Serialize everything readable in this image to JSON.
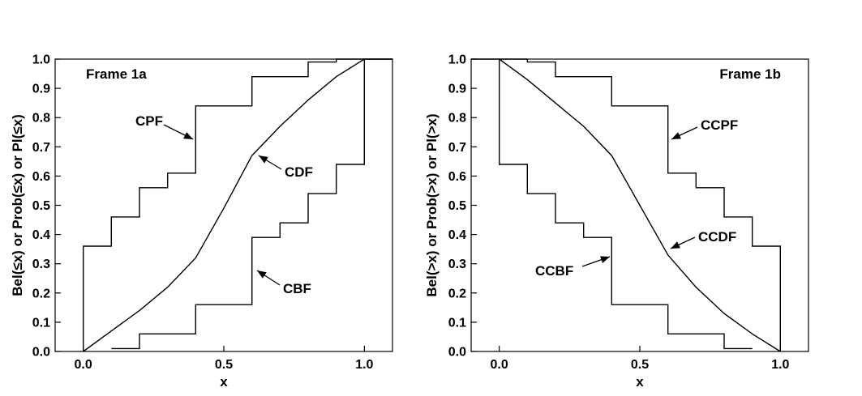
{
  "chart_data": [
    {
      "type": "line",
      "title": "",
      "xlabel": "x",
      "ylabel": "Bel(≤x)  or  Prob(≤x)  or  Pl(≤x)",
      "xlim": [
        -0.1,
        1.1
      ],
      "ylim": [
        0.0,
        1.0
      ],
      "xticks": [
        "0.0",
        "0.5",
        "1.0"
      ],
      "yticks": [
        "0.0",
        "0.1",
        "0.2",
        "0.3",
        "0.4",
        "0.5",
        "0.6",
        "0.7",
        "0.8",
        "0.9",
        "1.0"
      ],
      "grid": false,
      "frame_label": "Frame 1a",
      "series": [
        {
          "name": "CPF",
          "step": true,
          "x": [
            0.0,
            0.0,
            0.1,
            0.1,
            0.2,
            0.2,
            0.3,
            0.3,
            0.4,
            0.4,
            0.6,
            0.6,
            0.8,
            0.8,
            0.9,
            0.9,
            1.1
          ],
          "y": [
            0.0,
            0.36,
            0.36,
            0.46,
            0.46,
            0.56,
            0.56,
            0.61,
            0.61,
            0.84,
            0.84,
            0.94,
            0.94,
            0.99,
            0.99,
            1.0,
            1.0
          ]
        },
        {
          "name": "CDF",
          "step": false,
          "x": [
            0.0,
            0.1,
            0.2,
            0.3,
            0.4,
            0.5,
            0.6,
            0.7,
            0.8,
            0.9,
            1.0
          ],
          "y": [
            0.0,
            0.07,
            0.14,
            0.22,
            0.32,
            0.49,
            0.67,
            0.77,
            0.86,
            0.94,
            1.0
          ]
        },
        {
          "name": "CBF",
          "step": true,
          "x": [
            0.1,
            0.2,
            0.2,
            0.4,
            0.4,
            0.6,
            0.6,
            0.7,
            0.7,
            0.8,
            0.8,
            0.9,
            0.9,
            1.0,
            1.0,
            1.1
          ],
          "y": [
            0.01,
            0.01,
            0.06,
            0.06,
            0.16,
            0.16,
            0.39,
            0.39,
            0.44,
            0.44,
            0.54,
            0.54,
            0.64,
            0.64,
            1.0,
            1.0
          ]
        }
      ]
    },
    {
      "type": "line",
      "title": "",
      "xlabel": "x",
      "ylabel": "Bel(>x)  or  Prob(>x)  or  Pl(>x)",
      "xlim": [
        -0.1,
        1.1
      ],
      "ylim": [
        0.0,
        1.0
      ],
      "xticks": [
        "0.0",
        "0.5",
        "1.0"
      ],
      "yticks": [
        "0.0",
        "0.1",
        "0.2",
        "0.3",
        "0.4",
        "0.5",
        "0.6",
        "0.7",
        "0.8",
        "0.9",
        "1.0"
      ],
      "grid": false,
      "frame_label": "Frame 1b",
      "series": [
        {
          "name": "CCPF",
          "step": true,
          "x": [
            -0.1,
            0.1,
            0.1,
            0.2,
            0.2,
            0.4,
            0.4,
            0.6,
            0.6,
            0.7,
            0.7,
            0.8,
            0.8,
            0.9,
            0.9,
            1.0,
            1.0
          ],
          "y": [
            1.0,
            1.0,
            0.99,
            0.99,
            0.94,
            0.94,
            0.84,
            0.84,
            0.61,
            0.61,
            0.56,
            0.56,
            0.46,
            0.46,
            0.36,
            0.36,
            0.0
          ]
        },
        {
          "name": "CCDF",
          "step": false,
          "x": [
            0.0,
            0.1,
            0.2,
            0.3,
            0.4,
            0.5,
            0.6,
            0.7,
            0.8,
            0.9,
            1.0
          ],
          "y": [
            1.0,
            0.93,
            0.85,
            0.77,
            0.67,
            0.5,
            0.33,
            0.22,
            0.13,
            0.06,
            0.0
          ]
        },
        {
          "name": "CCBF",
          "step": true,
          "x": [
            0.0,
            0.0,
            0.1,
            0.1,
            0.2,
            0.2,
            0.3,
            0.3,
            0.4,
            0.4,
            0.6,
            0.6,
            0.8,
            0.8,
            0.9
          ],
          "y": [
            1.0,
            0.64,
            0.64,
            0.54,
            0.54,
            0.44,
            0.44,
            0.39,
            0.39,
            0.16,
            0.16,
            0.06,
            0.06,
            0.01,
            0.01
          ]
        }
      ]
    }
  ]
}
